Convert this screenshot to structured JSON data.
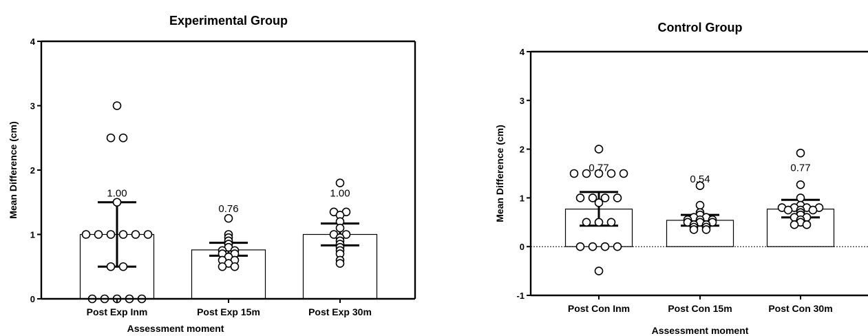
{
  "chart_data": [
    {
      "type": "bar",
      "title": "Experimental Group",
      "xlabel": "Assessment moment",
      "ylabel": "Mean Difference (cm)",
      "ylim": [
        0,
        4
      ],
      "yticks": [
        "0",
        "1",
        "2",
        "3",
        "4"
      ],
      "categories": [
        "Post Exp Inm",
        "Post Exp 15m",
        "Post Exp 30m"
      ],
      "values": [
        1.0,
        0.76,
        1.0
      ],
      "value_labels": [
        "1.00",
        "0.76",
        "1.00"
      ],
      "error_bars": [
        [
          0.5,
          1.5
        ],
        [
          0.67,
          0.87
        ],
        [
          0.83,
          1.17
        ]
      ],
      "points": [
        [
          3.0,
          2.5,
          2.5,
          1.5,
          1.0,
          1.0,
          1.0,
          1.0,
          1.0,
          1.0,
          0.5,
          0.5,
          0.0,
          0.0,
          0.0,
          0.0,
          0.0
        ],
        [
          1.25,
          1.0,
          0.95,
          0.9,
          0.85,
          0.8,
          0.75,
          0.75,
          0.7,
          0.7,
          0.65,
          0.6,
          0.6,
          0.55,
          0.5,
          0.5
        ],
        [
          1.8,
          1.35,
          1.35,
          1.3,
          1.2,
          1.1,
          1.0,
          1.0,
          0.95,
          0.9,
          0.85,
          0.8,
          0.75,
          0.7,
          0.6,
          0.55
        ]
      ],
      "grid": false,
      "zero_line": false
    },
    {
      "type": "bar",
      "title": "Control Group",
      "xlabel": "Assessment moment",
      "ylabel": "Mean Difference (cm)",
      "ylim": [
        -1,
        4
      ],
      "yticks": [
        "-1",
        "0",
        "1",
        "2",
        "3",
        "4"
      ],
      "categories": [
        "Post Con Inm",
        "Post Con 15m",
        "Post Con 30m"
      ],
      "values": [
        0.77,
        0.54,
        0.77
      ],
      "value_labels": [
        "0.77",
        "0.54",
        "0.77"
      ],
      "error_bars": [
        [
          0.43,
          1.12
        ],
        [
          0.43,
          0.65
        ],
        [
          0.6,
          0.96
        ]
      ],
      "points": [
        [
          2.0,
          1.5,
          1.5,
          1.5,
          1.5,
          1.5,
          1.0,
          1.0,
          1.0,
          1.0,
          0.9,
          0.5,
          0.5,
          0.5,
          0.0,
          0.0,
          0.0,
          0.0,
          -0.5
        ],
        [
          1.25,
          0.85,
          0.7,
          0.65,
          0.6,
          0.6,
          0.55,
          0.55,
          0.55,
          0.5,
          0.5,
          0.5,
          0.45,
          0.45,
          0.4,
          0.4,
          0.35,
          0.35
        ],
        [
          1.92,
          1.27,
          1.0,
          0.85,
          0.8,
          0.8,
          0.8,
          0.8,
          0.75,
          0.75,
          0.75,
          0.7,
          0.65,
          0.6,
          0.6,
          0.55,
          0.5,
          0.45,
          0.45
        ]
      ],
      "grid": false,
      "zero_line": true
    }
  ]
}
